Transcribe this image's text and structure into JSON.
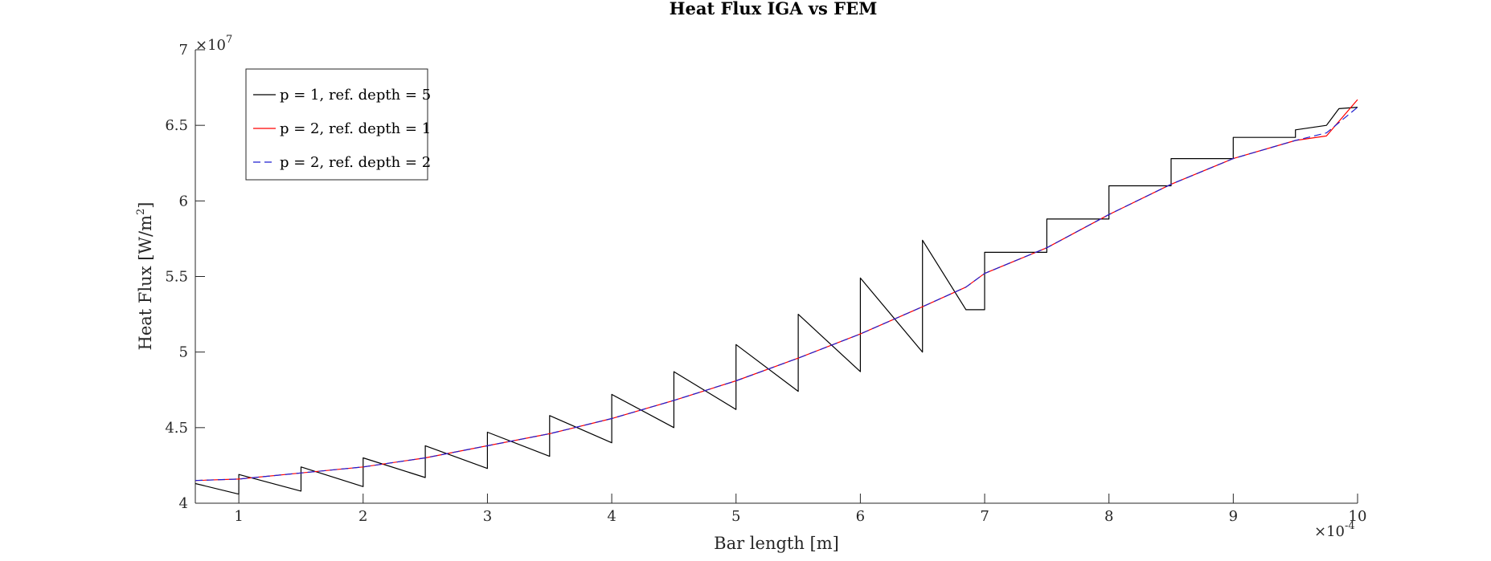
{
  "chart_data": {
    "type": "line",
    "title": "Heat Flux IGA vs FEM",
    "xlabel": "Bar length [m]",
    "ylabel": "Heat Flux [W/m",
    "ylabel_sup": "2",
    "ylabel_end": "]",
    "x_multiplier": {
      "base": "×10",
      "exp": "-4"
    },
    "y_multiplier": {
      "base": "×10",
      "exp": "7"
    },
    "xlim": [
      0.65,
      10
    ],
    "ylim": [
      4,
      7
    ],
    "x_ticks": [
      1,
      2,
      3,
      4,
      5,
      6,
      7,
      8,
      9,
      10
    ],
    "x_tick_labels": [
      "1",
      "2",
      "3",
      "4",
      "5",
      "6",
      "7",
      "8",
      "9",
      "10"
    ],
    "y_ticks": [
      4,
      4.5,
      5,
      5.5,
      6,
      6.5,
      7
    ],
    "y_tick_labels": [
      "4",
      "4.5",
      "5",
      "5.5",
      "6",
      "6.5",
      "7"
    ],
    "grid": false,
    "legend_position": "top-left",
    "series": [
      {
        "name": "p = 1, ref. depth = 5",
        "color": "#000000",
        "dash": "solid",
        "x": [
          0.65,
          1.0,
          1.0,
          1.5,
          1.5,
          2.0,
          2.0,
          2.5,
          2.5,
          3.0,
          3.0,
          3.5,
          3.5,
          4.0,
          4.0,
          4.5,
          4.5,
          5.0,
          5.0,
          5.5,
          5.5,
          6.0,
          6.0,
          6.5,
          6.5,
          6.85,
          7.0,
          7.0,
          7.5,
          7.5,
          8.0,
          8.0,
          8.5,
          8.5,
          9.0,
          9.0,
          9.5,
          9.5,
          9.75,
          9.85,
          10.0
        ],
        "y": [
          4.13,
          4.06,
          4.19,
          4.08,
          4.24,
          4.11,
          4.3,
          4.17,
          4.38,
          4.23,
          4.47,
          4.31,
          4.58,
          4.4,
          4.72,
          4.5,
          4.87,
          4.62,
          5.05,
          4.74,
          5.25,
          4.87,
          5.49,
          5.0,
          5.74,
          5.28,
          5.28,
          5.66,
          5.66,
          5.88,
          5.88,
          6.1,
          6.1,
          6.28,
          6.28,
          6.42,
          6.42,
          6.47,
          6.5,
          6.61,
          6.62
        ]
      },
      {
        "name": "p = 2, ref. depth = 1",
        "color": "#ff0000",
        "dash": "solid",
        "x": [
          0.65,
          1.0,
          1.5,
          2.0,
          2.5,
          3.0,
          3.5,
          4.0,
          4.5,
          5.0,
          5.5,
          6.0,
          6.5,
          6.85,
          7.0,
          7.5,
          8.0,
          8.5,
          9.0,
          9.5,
          9.75,
          10.0
        ],
        "y": [
          4.15,
          4.16,
          4.2,
          4.24,
          4.3,
          4.38,
          4.46,
          4.56,
          4.68,
          4.81,
          4.96,
          5.12,
          5.3,
          5.43,
          5.52,
          5.69,
          5.91,
          6.11,
          6.28,
          6.4,
          6.43,
          6.67
        ]
      },
      {
        "name": "p = 2, ref. depth = 2",
        "color": "#1f1fd0",
        "dash": "dashed",
        "x": [
          0.65,
          1.0,
          1.5,
          2.0,
          2.5,
          3.0,
          3.5,
          4.0,
          4.5,
          5.0,
          5.5,
          6.0,
          6.5,
          6.85,
          7.0,
          7.5,
          8.0,
          8.5,
          9.0,
          9.5,
          9.75,
          10.0
        ],
        "y": [
          4.15,
          4.16,
          4.2,
          4.24,
          4.3,
          4.38,
          4.46,
          4.56,
          4.68,
          4.81,
          4.96,
          5.12,
          5.3,
          5.43,
          5.52,
          5.69,
          5.91,
          6.11,
          6.28,
          6.4,
          6.45,
          6.62
        ]
      }
    ]
  }
}
